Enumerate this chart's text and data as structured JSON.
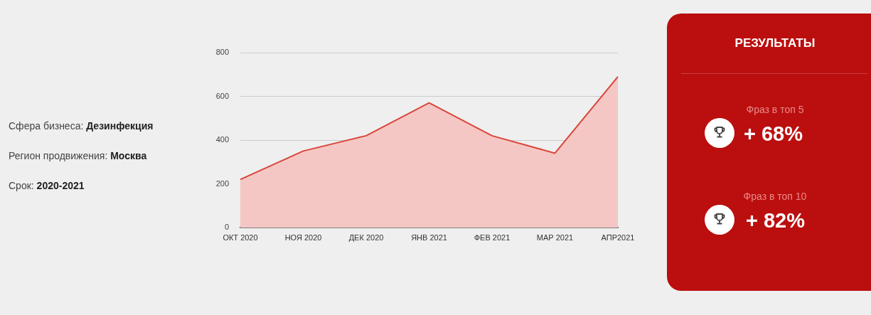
{
  "chart_data": [
    {
      "type": "other",
      "annotations": [
        "Сфера бизнеса: Дезинфекция",
        "Регион продвижения: Москва",
        "Срок: 2020-2021"
      ]
    },
    {
      "type": "area",
      "categories": [
        "ОКТ 2020",
        "НОЯ 2020",
        "ДЕК 2020",
        "ЯНВ 2021",
        "ФЕВ 2021",
        "МАР 2021",
        "АПР2021"
      ],
      "values": [
        220,
        350,
        420,
        570,
        420,
        340,
        690
      ],
      "color": "#d9453a",
      "ylim": [
        0,
        800
      ],
      "yticks": [
        0,
        200,
        400,
        600,
        800
      ],
      "grid": "y",
      "marker": "none"
    },
    {
      "type": "other",
      "title": "РЕЗУЛЬТАТЫ",
      "annotations": [
        "Фраз в топ 5",
        "+ 68%",
        "Фраз в топ 10",
        "+ 82%"
      ]
    }
  ]
}
